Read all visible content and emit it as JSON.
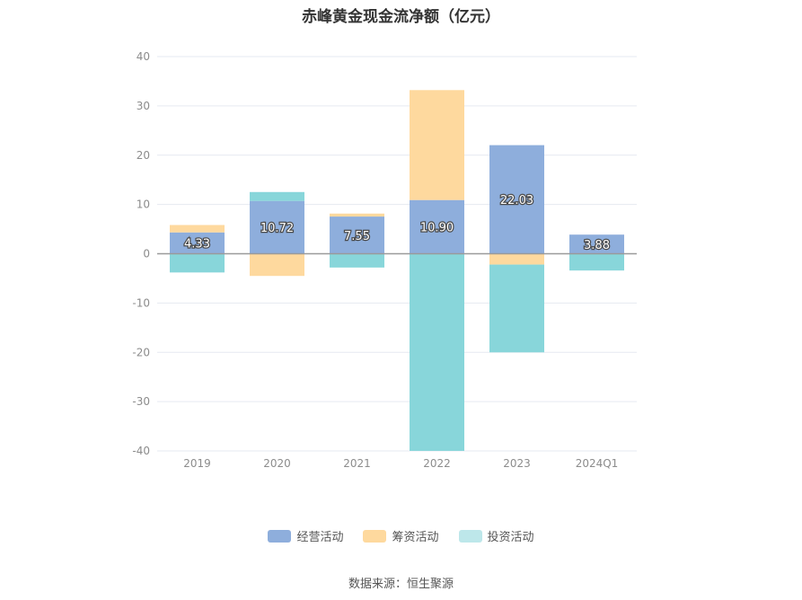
{
  "chart_data": {
    "type": "bar",
    "stacked": true,
    "title": "赤峰黄金现金流净额（亿元）",
    "categories": [
      "2019",
      "2020",
      "2021",
      "2022",
      "2023",
      "2024Q1"
    ],
    "series": [
      {
        "name": "经营活动",
        "color": "#8eaedc",
        "values": [
          4.33,
          10.72,
          7.55,
          10.9,
          22.03,
          3.88
        ],
        "labels": [
          "4.33",
          "10.72",
          "7.55",
          "10.90",
          "22.03",
          "3.88"
        ]
      },
      {
        "name": "筹资活动",
        "color": "#fed99e",
        "values": [
          1.5,
          -4.5,
          0.6,
          22.3,
          -2.2,
          0.0
        ]
      },
      {
        "name": "投资活动",
        "color": "#88d6da",
        "values": [
          -3.8,
          1.8,
          -2.8,
          -40.0,
          -17.8,
          -3.4
        ]
      }
    ],
    "ylim": [
      -40,
      40
    ],
    "yticks": [
      "-40",
      "-30",
      "-20",
      "-10",
      "0",
      "10",
      "20",
      "30",
      "40"
    ],
    "legend_position": "bottom",
    "grid": true
  },
  "legend": {
    "items": [
      {
        "label": "经营活动",
        "color": "#8eaedc"
      },
      {
        "label": "筹资活动",
        "color": "#fed99e"
      },
      {
        "label": "投资活动",
        "color": "#bde7ea"
      }
    ]
  },
  "source": "数据来源：恒生聚源"
}
